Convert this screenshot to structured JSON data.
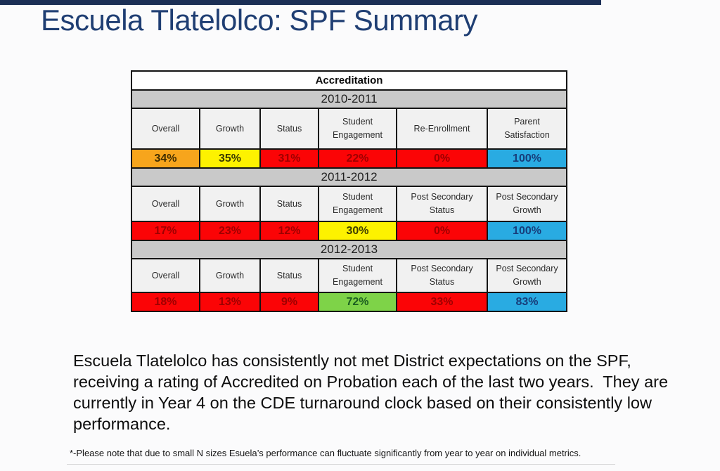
{
  "title": "Escuela Tlatelolco: SPF Summary",
  "table": {
    "title": "Accreditation",
    "colors": {
      "orange": {
        "bg": "#F7A51C",
        "fg": "#3f2d00"
      },
      "yellow": {
        "bg": "#FDF200",
        "fg": "#3d3d00"
      },
      "red": {
        "bg": "#FB0406",
        "fg": "#9e0000"
      },
      "blue": {
        "bg": "#29ABE2",
        "fg": "#173d7a"
      },
      "green": {
        "bg": "#7ED348",
        "fg": "#1b5e20"
      }
    },
    "sections": [
      {
        "year": "2010-2011",
        "columns": [
          "Overall",
          "Growth",
          "Status",
          "Student Engagement",
          "Re-Enrollment",
          "Parent Satisfaction"
        ],
        "values": [
          {
            "text": "34%",
            "color": "orange"
          },
          {
            "text": "35%",
            "color": "yellow"
          },
          {
            "text": "31%",
            "color": "red"
          },
          {
            "text": "22%",
            "color": "red"
          },
          {
            "text": "0%",
            "color": "red"
          },
          {
            "text": "100%",
            "color": "blue"
          }
        ]
      },
      {
        "year": "2011-2012",
        "columns": [
          "Overall",
          "Growth",
          "Status",
          "Student Engagement",
          "Post Secondary Status",
          "Post Secondary Growth"
        ],
        "values": [
          {
            "text": "17%",
            "color": "red"
          },
          {
            "text": "23%",
            "color": "red"
          },
          {
            "text": "12%",
            "color": "red"
          },
          {
            "text": "30%",
            "color": "yellow"
          },
          {
            "text": "0%",
            "color": "red"
          },
          {
            "text": "100%",
            "color": "blue"
          }
        ]
      },
      {
        "year": "2012-2013",
        "columns": [
          "Overall",
          "Growth",
          "Status",
          "Student Engagement",
          "Post Secondary Status",
          "Post Secondary Growth"
        ],
        "values": [
          {
            "text": "18%",
            "color": "red"
          },
          {
            "text": "13%",
            "color": "red"
          },
          {
            "text": "9%",
            "color": "red"
          },
          {
            "text": "72%",
            "color": "green"
          },
          {
            "text": "33%",
            "color": "red"
          },
          {
            "text": "83%",
            "color": "blue"
          }
        ]
      }
    ]
  },
  "summary": "Escuela Tlatelolco has consistently not met District expectations on the SPF, receiving a rating of Accredited on Probation each of the last two years.  They are currently in Year 4 on the CDE turnaround clock based on their consistently low performance.",
  "footnote": "*-Please note that due to small N sizes Esuela’s performance can fluctuate significantly from year to year on individual metrics."
}
